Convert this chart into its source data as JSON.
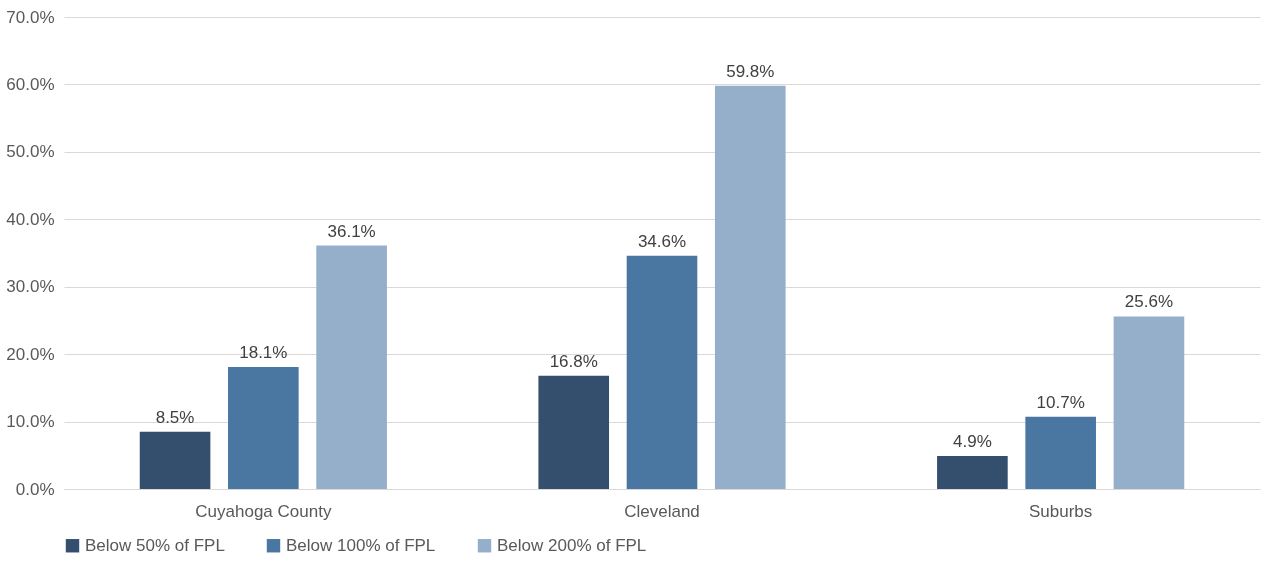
{
  "chart_data": {
    "type": "bar",
    "categories": [
      "Cuyahoga County",
      "Cleveland",
      "Suburbs"
    ],
    "series": [
      {
        "name": "Below 50% of FPL",
        "color": "#344e6e",
        "values": [
          8.5,
          16.8,
          4.9
        ],
        "value_labels": [
          "8.5%",
          "16.8%",
          "4.9%"
        ]
      },
      {
        "name": "Below 100% of FPL",
        "color": "#4a76a2",
        "values": [
          18.1,
          34.6,
          10.7
        ],
        "value_labels": [
          "18.1%",
          "34.6%",
          "10.7%"
        ]
      },
      {
        "name": "Below 200% of FPL",
        "color": "#95aec9",
        "values": [
          36.1,
          59.8,
          25.6
        ],
        "value_labels": [
          "36.1%",
          "59.8%",
          "25.6%"
        ]
      }
    ],
    "ylim": [
      0,
      70
    ],
    "yticks": [
      {
        "value": 0,
        "label": "0.0%"
      },
      {
        "value": 10,
        "label": "10.0%"
      },
      {
        "value": 20,
        "label": "20.0%"
      },
      {
        "value": 30,
        "label": "30.0%"
      },
      {
        "value": 40,
        "label": "40.0%"
      },
      {
        "value": 50,
        "label": "50.0%"
      },
      {
        "value": 60,
        "label": "60.0%"
      },
      {
        "value": 70,
        "label": "70.0%"
      }
    ],
    "grid": "y",
    "legend": "bottom"
  }
}
